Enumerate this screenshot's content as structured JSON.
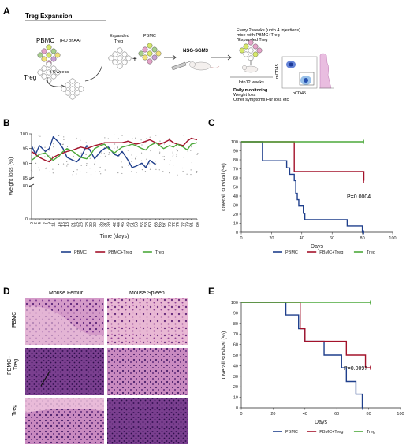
{
  "panel_a": {
    "letter": "A",
    "title": "Treg Expansion",
    "pbmc_label": "PBMC",
    "pbmc_sub": "(HD or AA)",
    "treg_label": "Treg",
    "weeks_label": "4-6 weeks",
    "expanded_treg_label_1": "Expanded",
    "expanded_treg_label_2": "Treg",
    "pbmc_small_label": "PBMC",
    "mouse_label": "NSG-SGM3",
    "injection_note_1": "Every 2 weeks (upto 4 Injections)",
    "injection_note_2": "mice with PBMC+Treg",
    "injection_note_3": "*Expanded Treg",
    "upto_label": "Upto12 weeks",
    "monitor_title": "Daily monitoring",
    "monitor_1": "Weight loss",
    "monitor_2": "Other symptoms Fur loss etc",
    "flow_x_label": "hCD45",
    "flow_y_label": "mCD45"
  },
  "panel_b": {
    "letter": "B"
  },
  "panel_c": {
    "letter": "C",
    "pvalue": "P=0.0004"
  },
  "panel_d": {
    "letter": "D",
    "col1": "Mouse Femur",
    "col2": "Mouse Spleen",
    "row1": "PBMC",
    "row2_1": "PBMC+",
    "row2_2": "Treg",
    "row3": "Treg"
  },
  "panel_e": {
    "letter": "E",
    "pvalue": "P=0.0097"
  },
  "colors": {
    "pbmc": "#1f3f8c",
    "pbmc_treg": "#a3122a",
    "treg": "#4ca83a"
  },
  "chart_data": [
    {
      "id": "B",
      "type": "line",
      "xlabel": "Time (days)",
      "ylabel": "Weight loss (%)",
      "ylim_upper": [
        85,
        100
      ],
      "ylim_lower": [
        0,
        80
      ],
      "yticks_upper": [
        85,
        90,
        95,
        100
      ],
      "yticks_lower": [
        0,
        80
      ],
      "xticks": [
        0,
        2,
        4,
        7,
        9,
        11,
        14,
        16,
        18,
        21,
        23,
        25,
        28,
        30,
        32,
        35,
        37,
        39,
        42,
        44,
        46,
        49,
        51,
        53,
        56,
        58,
        60,
        63,
        65,
        67,
        70,
        72,
        74,
        77,
        79,
        81,
        84
      ],
      "legend": [
        "PBMC",
        "PBMC+Treg",
        "Treg"
      ],
      "series": [
        {
          "name": "PBMC",
          "x": [
            0,
            2,
            4,
            7,
            9,
            11,
            14,
            16,
            18,
            21,
            23,
            25,
            28,
            30,
            32,
            35,
            37,
            39,
            42,
            44,
            46,
            49,
            51,
            53,
            56,
            58,
            60,
            63
          ],
          "values": [
            96,
            93,
            96,
            94,
            95,
            99,
            97,
            95,
            92,
            91,
            90.5,
            92,
            96,
            94,
            91.5,
            94,
            95,
            95.5,
            93,
            92.5,
            94,
            91,
            88.5,
            89,
            90,
            88.5,
            91,
            89.5
          ]
        },
        {
          "name": "PBMC+Treg",
          "x": [
            0,
            2,
            4,
            7,
            9,
            11,
            14,
            16,
            18,
            21,
            23,
            25,
            28,
            30,
            32,
            35,
            37,
            39,
            42,
            44,
            46,
            49,
            51,
            53,
            56,
            58,
            60,
            63,
            65,
            67,
            70,
            72,
            74,
            77,
            79,
            81,
            84
          ],
          "values": [
            94,
            93,
            92,
            91,
            90.5,
            92,
            93,
            93.5,
            94,
            94.5,
            95,
            95.5,
            95,
            95.5,
            96,
            96.5,
            97,
            97,
            97,
            97,
            97,
            97.5,
            97,
            96.5,
            97,
            97.5,
            98,
            97,
            96.5,
            97,
            98,
            97,
            96.5,
            96,
            97.5,
            98.5,
            98
          ]
        },
        {
          "name": "Treg",
          "x": [
            0,
            2,
            4,
            7,
            9,
            11,
            14,
            16,
            18,
            21,
            23,
            25,
            28,
            30,
            32,
            35,
            37,
            39,
            42,
            44,
            46,
            49,
            51,
            53,
            56,
            58,
            60,
            63,
            65,
            67,
            70,
            72,
            74,
            77,
            79,
            81,
            84
          ],
          "values": [
            91,
            92,
            93,
            93.5,
            92,
            91,
            92.5,
            94,
            95,
            94,
            93,
            92,
            91.5,
            93,
            95,
            96,
            96.5,
            95,
            93.5,
            94.5,
            95.5,
            96,
            96.5,
            96,
            95,
            94.5,
            96,
            97,
            96,
            95,
            96,
            95.5,
            96.5,
            95.5,
            94.5,
            96.5,
            97
          ]
        }
      ]
    },
    {
      "id": "C",
      "type": "line",
      "xlabel": "Days",
      "ylabel": "Overall survival (%)",
      "xlim": [
        0,
        100
      ],
      "ylim": [
        0,
        100
      ],
      "xticks": [
        0,
        20,
        40,
        60,
        80,
        100
      ],
      "yticks": [
        0,
        10,
        20,
        30,
        40,
        50,
        60,
        70,
        80,
        90,
        100
      ],
      "legend": [
        "PBMC",
        "PBMC+Treg",
        "Treg"
      ],
      "series": [
        {
          "name": "PBMC",
          "x": [
            0,
            14,
            14,
            20,
            30,
            32,
            35,
            36,
            37,
            38,
            40,
            41,
            42,
            46,
            70,
            80,
            81
          ],
          "values": [
            100,
            100,
            79,
            79,
            71,
            64,
            57,
            43,
            36,
            29,
            29,
            21,
            14,
            14,
            7,
            0,
            0
          ]
        },
        {
          "name": "PBMC+Treg",
          "x": [
            0,
            35,
            35,
            81,
            81
          ],
          "values": [
            100,
            100,
            67,
            67,
            57
          ]
        },
        {
          "name": "Treg",
          "x": [
            0,
            81
          ],
          "values": [
            100,
            100
          ]
        }
      ]
    },
    {
      "id": "E",
      "type": "line",
      "xlabel": "Days",
      "ylabel": "Overall survival (%)",
      "xlim": [
        0,
        100
      ],
      "ylim": [
        0,
        100
      ],
      "xticks": [
        0,
        20,
        40,
        60,
        80,
        100
      ],
      "yticks": [
        0,
        10,
        20,
        30,
        40,
        50,
        60,
        70,
        80,
        90,
        100
      ],
      "legend": [
        "PBMC",
        "PBMC+Treg",
        "Treg"
      ],
      "series": [
        {
          "name": "PBMC",
          "x": [
            0,
            28,
            28,
            36,
            36,
            40,
            40,
            52,
            52,
            63,
            63,
            66,
            66,
            72,
            72,
            76
          ],
          "values": [
            100,
            100,
            88,
            88,
            75,
            75,
            63,
            63,
            50,
            50,
            38,
            38,
            25,
            25,
            13,
            0
          ]
        },
        {
          "name": "PBMC+Treg",
          "x": [
            0,
            37,
            37,
            40,
            40,
            66,
            66,
            78,
            78,
            81
          ],
          "values": [
            100,
            100,
            75,
            75,
            63,
            63,
            50,
            50,
            38,
            38
          ]
        },
        {
          "name": "Treg",
          "x": [
            0,
            81
          ],
          "values": [
            100,
            100
          ]
        }
      ]
    }
  ]
}
